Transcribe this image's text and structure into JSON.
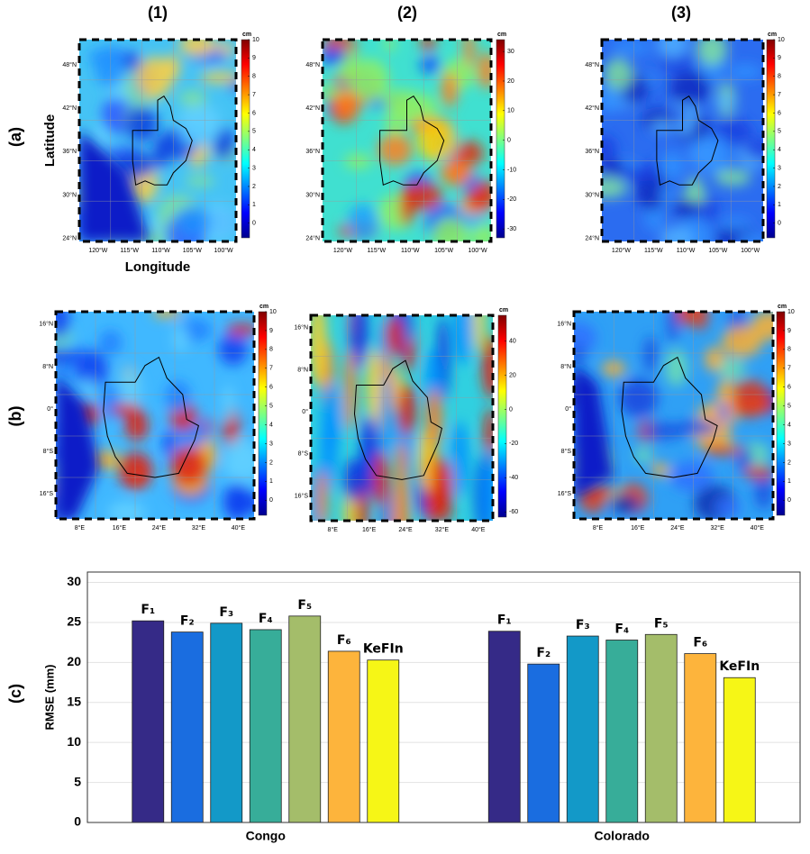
{
  "column_labels": [
    "(1)",
    "(2)",
    "(3)"
  ],
  "row_labels": [
    "(a)",
    "(b)",
    "(c)"
  ],
  "map_ylabel": "Latitude",
  "map_xlabel": "Longitude",
  "maps": {
    "a": {
      "lat_ticks": [
        "48°N",
        "42°N",
        "36°N",
        "30°N",
        "24°N"
      ],
      "lon_ticks": [
        "120°W",
        "115°W",
        "110°W",
        "105°W",
        "100°W"
      ],
      "colorbars": [
        {
          "unit": "cm",
          "clim": [
            -0.8,
            10
          ],
          "ticks": [
            10,
            9,
            8,
            7,
            6,
            5,
            4,
            3,
            2,
            1,
            0
          ]
        },
        {
          "unit": "cm",
          "clim": [
            -33,
            34
          ],
          "ticks": [
            30,
            20,
            10,
            0,
            -10,
            -20,
            -30
          ]
        },
        {
          "unit": "cm",
          "clim": [
            -0.8,
            10
          ],
          "ticks": [
            10,
            9,
            8,
            7,
            6,
            5,
            4,
            3,
            2,
            1,
            0
          ]
        }
      ]
    },
    "b": {
      "lat_ticks": [
        "16°N",
        "8°N",
        "0°",
        "8°S",
        "16°S"
      ],
      "lon_ticks": [
        "8°E",
        "16°E",
        "24°E",
        "32°E",
        "40°E"
      ],
      "colorbars": [
        {
          "unit": "cm",
          "clim": [
            -0.8,
            10
          ],
          "ticks": [
            10,
            9,
            8,
            7,
            6,
            5,
            4,
            3,
            2,
            1,
            0
          ]
        },
        {
          "unit": "cm",
          "clim": [
            -63,
            55
          ],
          "ticks": [
            40,
            20,
            0,
            -20,
            -40,
            -60
          ]
        },
        {
          "unit": "cm",
          "clim": [
            -0.8,
            10
          ],
          "ticks": [
            10,
            9,
            8,
            7,
            6,
            5,
            4,
            3,
            2,
            1,
            0
          ]
        }
      ]
    }
  },
  "chart_data": {
    "type": "bar",
    "ylabel": "RMSE (mm)",
    "categories": [
      "Congo",
      "Colorado"
    ],
    "series": [
      {
        "name": "F₁",
        "color": "#352a87",
        "values": [
          25.2,
          23.9
        ]
      },
      {
        "name": "F₂",
        "color": "#1a6de0",
        "values": [
          23.8,
          19.8
        ]
      },
      {
        "name": "F₃",
        "color": "#1399c8",
        "values": [
          24.9,
          23.3
        ]
      },
      {
        "name": "F₄",
        "color": "#37ad99",
        "values": [
          24.1,
          22.8
        ]
      },
      {
        "name": "F₅",
        "color": "#a4bd6a",
        "values": [
          25.8,
          23.5
        ]
      },
      {
        "name": "F₆",
        "color": "#fdb43c",
        "values": [
          21.4,
          21.1
        ]
      },
      {
        "name": "KeFIn",
        "color": "#f6f616",
        "values": [
          20.3,
          18.1
        ]
      }
    ],
    "ylim": [
      0,
      31.3
    ],
    "yticks": [
      0,
      5,
      10,
      15,
      20,
      25,
      30
    ],
    "grid": true
  }
}
